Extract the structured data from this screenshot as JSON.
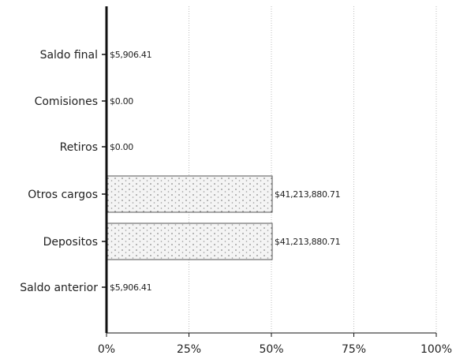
{
  "chart_data": {
    "type": "bar",
    "orientation": "horizontal",
    "categories": [
      "Saldo final",
      "Comisiones",
      "Retiros",
      "Otros cargos",
      "Depositos",
      "Saldo anterior"
    ],
    "values": [
      0.007,
      0,
      0,
      50,
      50,
      0.007
    ],
    "value_labels": [
      "$5,906.41",
      "$0.00",
      "$0.00",
      "$41,213,880.71",
      "$41,213,880.71",
      "$5,906.41"
    ],
    "x_ticks": [
      "0%",
      "25%",
      "50%",
      "75%",
      "100%"
    ],
    "xlim": [
      0,
      100
    ],
    "grid": true,
    "legend": "none",
    "colors": {
      "bar_fill": "#f4f4f4",
      "bar_stroke": "#555555",
      "bar_dots": "#8a8a8a",
      "axis": "#111111",
      "grid": "#bdbdbd"
    }
  }
}
